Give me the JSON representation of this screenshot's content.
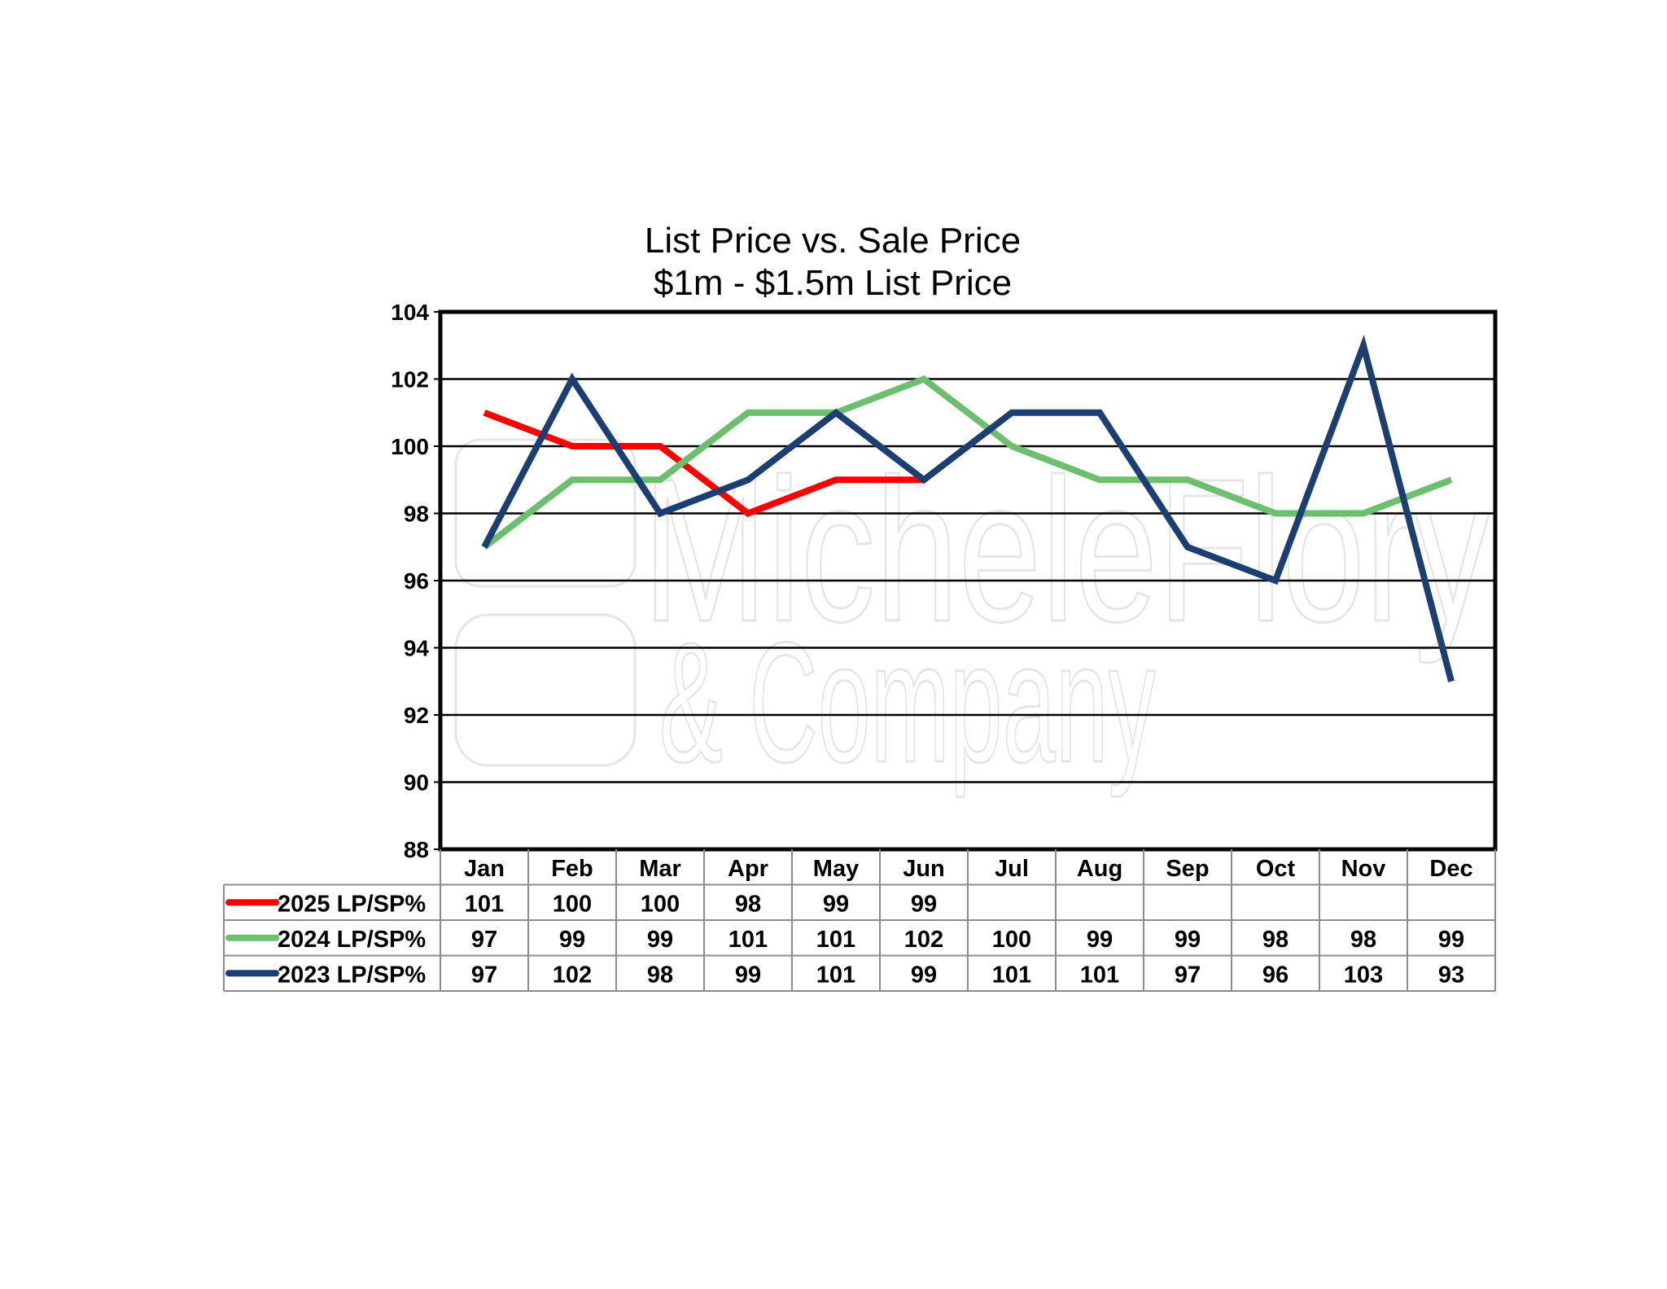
{
  "chart_data": {
    "type": "line",
    "title": "List Price vs. Sale Price",
    "subtitle": "$1m - $1.5m List Price",
    "categories": [
      "Jan",
      "Feb",
      "Mar",
      "Apr",
      "May",
      "Jun",
      "Jul",
      "Aug",
      "Sep",
      "Oct",
      "Nov",
      "Dec"
    ],
    "ylim": [
      88,
      104
    ],
    "yticks": [
      88,
      90,
      92,
      94,
      96,
      98,
      100,
      102,
      104
    ],
    "grid": true,
    "legend_placement": "data-table-left",
    "series": [
      {
        "name": "2025 LP/SP%",
        "color": "#ff0000",
        "values": [
          101,
          100,
          100,
          98,
          99,
          99,
          null,
          null,
          null,
          null,
          null,
          null
        ]
      },
      {
        "name": "2024 LP/SP%",
        "color": "#6cbf6c",
        "values": [
          97,
          99,
          99,
          101,
          101,
          102,
          100,
          99,
          99,
          98,
          98,
          99
        ]
      },
      {
        "name": "2023 LP/SP%",
        "color": "#1b3f73",
        "values": [
          97,
          102,
          98,
          99,
          101,
          99,
          101,
          101,
          97,
          96,
          103,
          93
        ]
      }
    ]
  },
  "watermark": {
    "line1": "MicheleFlory",
    "line2": "& Company"
  }
}
